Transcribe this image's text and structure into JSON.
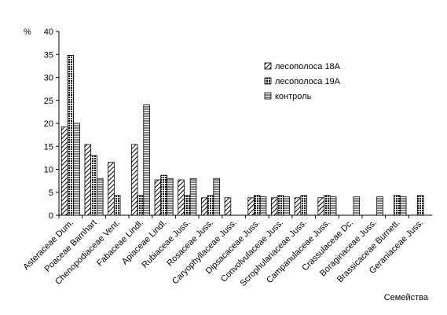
{
  "chart_data": {
    "type": "bar",
    "y_label": "%",
    "x_label": "Семейства",
    "categories": [
      "Asteraceae Dum.",
      "Poaceae Barnhart",
      "Chenopodiaceae Vent.",
      "Fabaceae Lindl.",
      "Apiaceae Lindl.",
      "Rubiaceae Juss.",
      "Rosaceae Juss.",
      "Caryophyllaceae Juss.",
      "Dipsacaceae Juss.",
      "Convolvulaceae Juss.",
      "Scrophulariaceae Juss.",
      "Campanulaceae Juss.",
      "Crassulaceae Dc.",
      "Boraginaceae Juss.",
      "Brassicaceae Burnett.",
      "Geraniaceae Juss."
    ],
    "series": [
      {
        "name": "лесополоса 18А",
        "color": "#000000",
        "pattern": "diagonal",
        "values": [
          19.2,
          15.4,
          11.5,
          15.4,
          7.7,
          7.7,
          3.8,
          3.8,
          3.8,
          3.8,
          3.8,
          3.8,
          0,
          0,
          0,
          0
        ]
      },
      {
        "name": "лесополоса 19А",
        "color": "#000000",
        "pattern": "cross",
        "values": [
          34.8,
          13,
          4.3,
          4.3,
          8.7,
          4.3,
          4.3,
          0,
          4.3,
          4.3,
          4.3,
          4.3,
          0,
          0,
          4.3,
          4.3
        ]
      },
      {
        "name": "контроль",
        "color": "#000000",
        "pattern": "horizontal",
        "values": [
          20,
          8,
          0,
          24,
          8,
          8,
          8,
          0,
          4,
          4,
          0,
          4,
          4,
          4,
          4,
          0
        ]
      }
    ],
    "ylim": [
      0,
      40
    ],
    "yticks": [
      0,
      5,
      10,
      15,
      20,
      25,
      30,
      35,
      40
    ],
    "grid": false
  }
}
